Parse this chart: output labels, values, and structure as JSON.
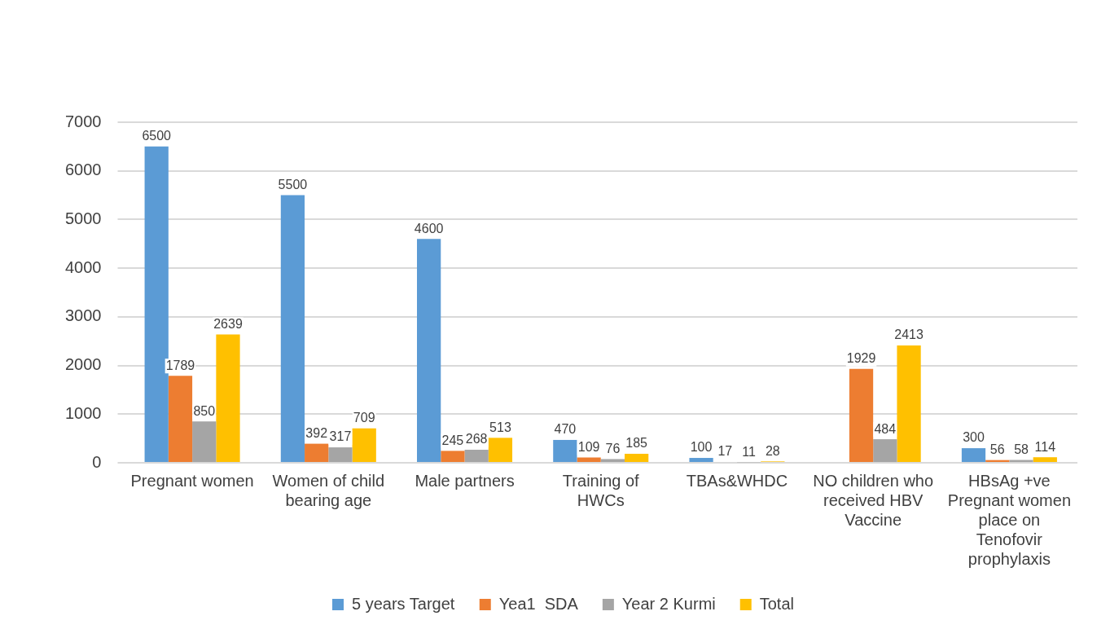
{
  "chart_data": {
    "type": "bar",
    "categories": [
      "Pregnant women",
      "Women of child bearing age",
      "Male partners",
      "Training of HWCs",
      "TBAs&WHDC",
      "NO children who received HBV Vaccine",
      "HBsAg +ve Pregnant women  place on Tenofovir prophylaxis"
    ],
    "series": [
      {
        "name": "5 years Target",
        "color": "#5b9bd5",
        "values": [
          6500,
          5500,
          4600,
          470,
          100,
          null,
          300
        ]
      },
      {
        "name": "Yea1  SDA",
        "color": "#ed7d31",
        "values": [
          1789,
          392,
          245,
          109,
          17,
          1929,
          56
        ]
      },
      {
        "name": "Year 2 Kurmi",
        "color": "#a5a5a5",
        "values": [
          850,
          317,
          268,
          76,
          11,
          484,
          58
        ]
      },
      {
        "name": "Total",
        "color": "#ffc000",
        "values": [
          2639,
          709,
          513,
          185,
          28,
          2413,
          114
        ]
      }
    ],
    "ylim": [
      0,
      7000
    ],
    "yticks": [
      0,
      1000,
      2000,
      3000,
      4000,
      5000,
      6000,
      7000
    ],
    "grid": "y",
    "legend": "bottom",
    "data_labels": true
  }
}
